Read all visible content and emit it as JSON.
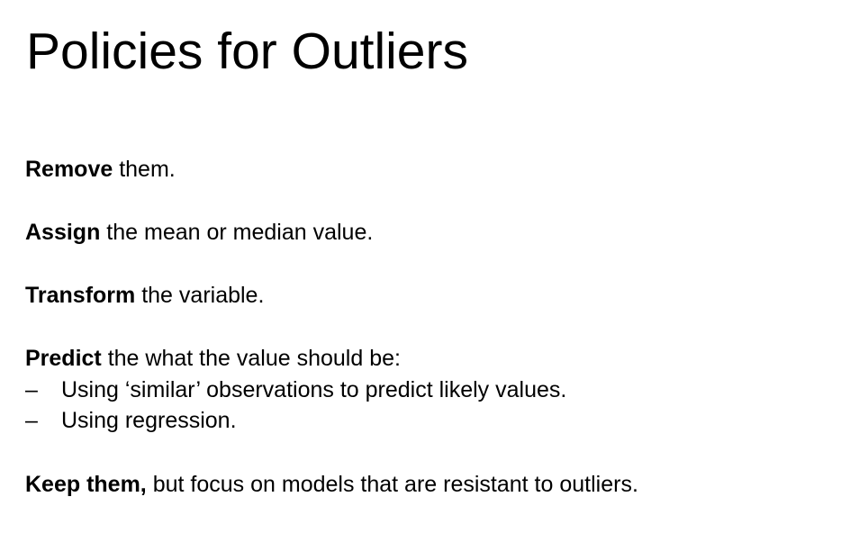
{
  "slide": {
    "title": "Policies for Outliers",
    "items": [
      {
        "keyword": "Remove",
        "rest": " them."
      },
      {
        "keyword": "Assign",
        "rest": " the mean or median value."
      },
      {
        "keyword": "Transform",
        "rest": " the variable."
      },
      {
        "keyword": "Predict",
        "rest": " the what the value should be:"
      }
    ],
    "bullet_marker": "–",
    "bullets": [
      "Using ‘similar’ observations to predict likely values.",
      "Using regression."
    ],
    "last_item": {
      "keyword": "Keep them,",
      "rest": " but focus on models that are resistant to outliers."
    }
  }
}
